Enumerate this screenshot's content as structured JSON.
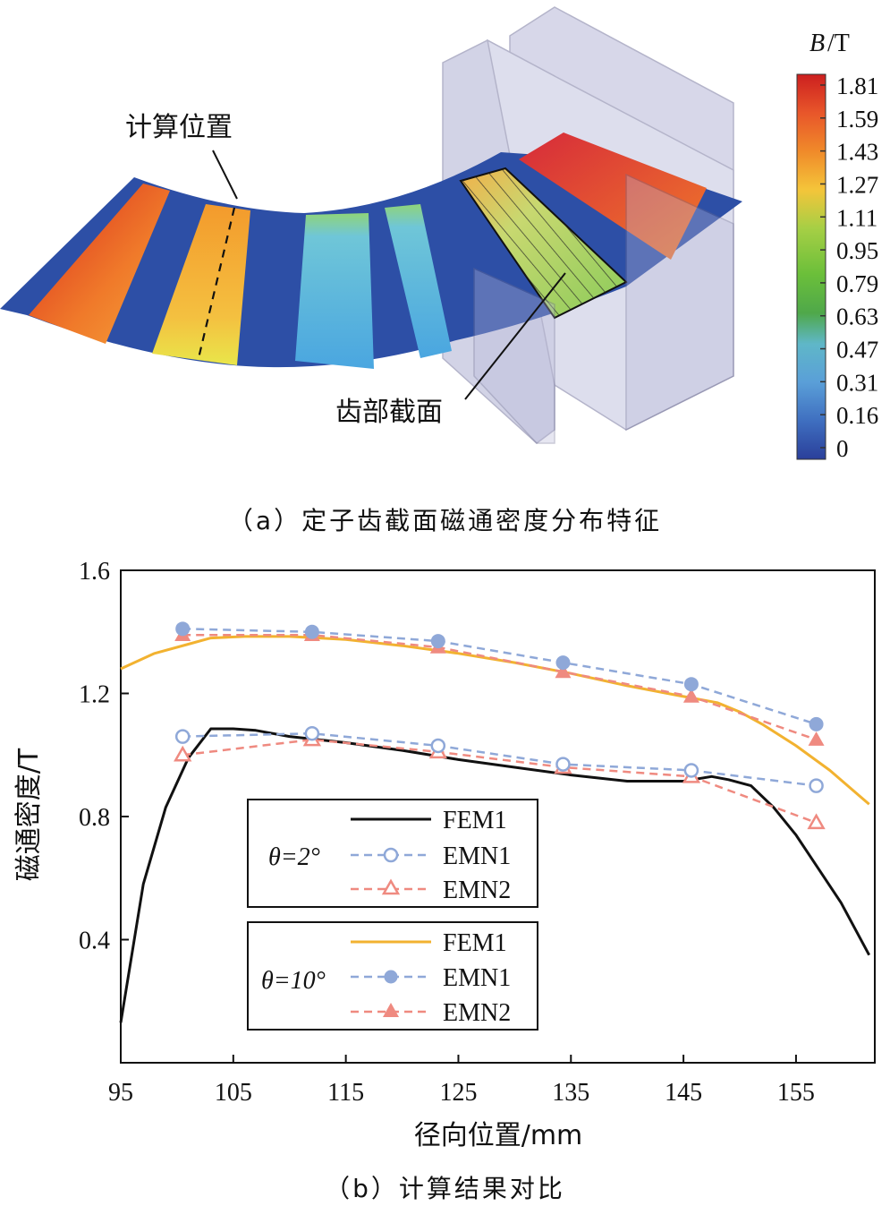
{
  "figure_a": {
    "caption": "（a）定子齿截面磁通密度分布特征",
    "label_calc_position": "计算位置",
    "label_tooth_section": "齿部截面",
    "colorbar": {
      "title_italic": "B",
      "title_unit": "/T",
      "ticks": [
        "1.81",
        "1.59",
        "1.43",
        "1.27",
        "1.11",
        "0.95",
        "0.79",
        "0.63",
        "0.47",
        "0.31",
        "0.16",
        "0"
      ],
      "colors": [
        "#cc1f1f",
        "#e8562a",
        "#f08a2a",
        "#f4c53a",
        "#d8dc4a",
        "#a6cf45",
        "#6bbf3a",
        "#4fa84a",
        "#5fb7c8",
        "#5a9fd8",
        "#3f6fc0",
        "#2a3f9a"
      ]
    }
  },
  "figure_b": {
    "caption": "（b）计算结果对比",
    "legend_groups": [
      {
        "theta_label": "θ=2°",
        "entries": [
          "FEM1",
          "EMN1",
          "EMN2"
        ]
      },
      {
        "theta_label": "θ=10°",
        "entries": [
          "FEM1",
          "EMN1",
          "EMN2"
        ]
      }
    ]
  },
  "chart_data": {
    "type": "line",
    "title": "",
    "xlabel": "径向位置/mm",
    "ylabel": "磁通密度/T",
    "xlim": [
      95,
      162
    ],
    "ylim": [
      0.0,
      1.6
    ],
    "xticks": [
      95,
      105,
      115,
      125,
      135,
      145,
      155
    ],
    "yticks": [
      0.4,
      0.8,
      1.2,
      1.6
    ],
    "ytick_labels": [
      "0.4",
      "0.8",
      "1.2",
      "1.6"
    ],
    "series": [
      {
        "name": "FEM1",
        "group": "θ=2°",
        "style": "solid",
        "marker": "none",
        "color": "#111111",
        "x": [
          95,
          97,
          99,
          101,
          103,
          105,
          107,
          110,
          115,
          120,
          125,
          130,
          135,
          140,
          145,
          147.5,
          149,
          151,
          153,
          155,
          157,
          159,
          161.5
        ],
        "y": [
          0.13,
          0.58,
          0.83,
          0.99,
          1.085,
          1.085,
          1.08,
          1.06,
          1.04,
          1.015,
          0.985,
          0.96,
          0.935,
          0.915,
          0.915,
          0.93,
          0.92,
          0.9,
          0.83,
          0.74,
          0.63,
          0.52,
          0.35
        ]
      },
      {
        "name": "EMN1",
        "group": "θ=2°",
        "style": "dashed",
        "marker": "circle-open",
        "color": "#8fa8d8",
        "x": [
          100.5,
          112,
          123.2,
          134.3,
          145.7,
          156.8
        ],
        "y": [
          1.06,
          1.07,
          1.03,
          0.97,
          0.95,
          0.9
        ]
      },
      {
        "name": "EMN2",
        "group": "θ=2°",
        "style": "dashed",
        "marker": "triangle-open",
        "color": "#ef8a80",
        "x": [
          100.5,
          112,
          123.2,
          134.3,
          145.7,
          156.8
        ],
        "y": [
          1.0,
          1.05,
          1.01,
          0.96,
          0.93,
          0.78
        ]
      },
      {
        "name": "FEM1",
        "group": "θ=10°",
        "style": "solid",
        "marker": "none",
        "color": "#f2b230",
        "x": [
          95,
          98,
          101,
          103,
          106,
          110,
          115,
          120,
          125,
          130,
          135,
          140,
          145,
          148,
          150,
          152,
          155,
          158,
          161.5
        ],
        "y": [
          1.28,
          1.33,
          1.36,
          1.38,
          1.385,
          1.385,
          1.375,
          1.355,
          1.33,
          1.3,
          1.265,
          1.225,
          1.19,
          1.17,
          1.14,
          1.1,
          1.03,
          0.95,
          0.84
        ]
      },
      {
        "name": "EMN1",
        "group": "θ=10°",
        "style": "dashed",
        "marker": "circle-filled",
        "color": "#8fa8d8",
        "x": [
          100.5,
          112,
          123.2,
          134.3,
          145.7,
          156.8
        ],
        "y": [
          1.41,
          1.4,
          1.37,
          1.3,
          1.23,
          1.1
        ]
      },
      {
        "name": "EMN2",
        "group": "θ=10°",
        "style": "dashed",
        "marker": "triangle-filled",
        "color": "#ef8a80",
        "x": [
          100.5,
          112,
          123.2,
          134.3,
          145.7,
          156.8
        ],
        "y": [
          1.39,
          1.39,
          1.35,
          1.27,
          1.19,
          1.05
        ]
      }
    ]
  }
}
